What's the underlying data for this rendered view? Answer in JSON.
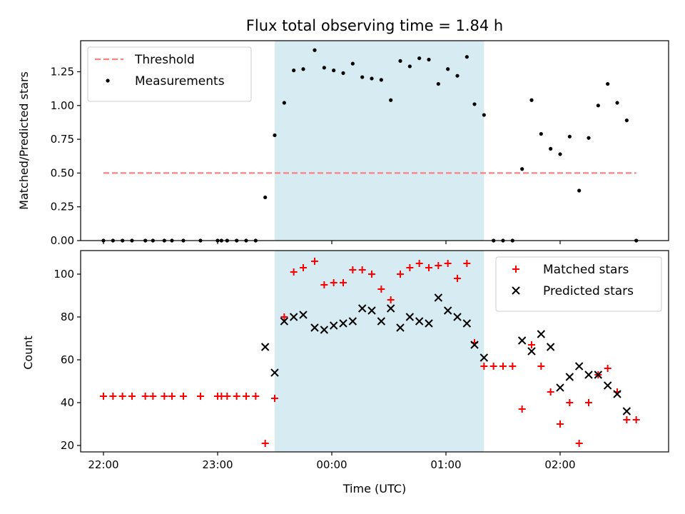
{
  "figure": {
    "title": "Flux total observing time = 1.84 h",
    "xlabel": "Time (UTC)",
    "highlight_color": "#add8e6",
    "highlight_span": [
      "23:30",
      "01:20"
    ]
  },
  "chart_data": [
    {
      "type": "scatter",
      "ylabel": "Matched/Predicted stars",
      "xlim": [
        "21:48",
        "02:57"
      ],
      "ylim": [
        0,
        1.48
      ],
      "yticks": [
        0.0,
        0.25,
        0.5,
        0.75,
        1.0,
        1.25
      ],
      "ytick_labels": [
        "0.00",
        "0.25",
        "0.50",
        "0.75",
        "1.00",
        "1.25"
      ],
      "xticks": [
        "22:00",
        "23:00",
        "00:00",
        "01:00",
        "02:00"
      ],
      "legend_position": "upper-left",
      "threshold": {
        "name": "Threshold",
        "value": 0.5,
        "x_range": [
          "22:00",
          "02:40"
        ],
        "color": "#ff7f7f",
        "style": "dashed"
      },
      "series": [
        {
          "name": "Measurements",
          "marker": "dot",
          "color": "#000000",
          "points": [
            [
              "22:00",
              0
            ],
            [
              "22:05",
              0
            ],
            [
              "22:10",
              0
            ],
            [
              "22:15",
              0
            ],
            [
              "22:22",
              0
            ],
            [
              "22:26",
              0
            ],
            [
              "22:32",
              0
            ],
            [
              "22:36",
              0
            ],
            [
              "22:42",
              0
            ],
            [
              "22:51",
              0
            ],
            [
              "23:00",
              0
            ],
            [
              "23:02",
              0
            ],
            [
              "23:05",
              0
            ],
            [
              "23:10",
              0
            ],
            [
              "23:15",
              0
            ],
            [
              "23:20",
              0
            ],
            [
              "23:25",
              0.32
            ],
            [
              "23:30",
              0.78
            ],
            [
              "23:35",
              1.02
            ],
            [
              "23:40",
              1.26
            ],
            [
              "23:45",
              1.27
            ],
            [
              "23:51",
              1.41
            ],
            [
              "23:56",
              1.28
            ],
            [
              "00:01",
              1.26
            ],
            [
              "00:06",
              1.24
            ],
            [
              "00:11",
              1.31
            ],
            [
              "00:16",
              1.21
            ],
            [
              "00:21",
              1.2
            ],
            [
              "00:26",
              1.19
            ],
            [
              "00:31",
              1.04
            ],
            [
              "00:36",
              1.33
            ],
            [
              "00:41",
              1.29
            ],
            [
              "00:46",
              1.35
            ],
            [
              "00:51",
              1.34
            ],
            [
              "00:56",
              1.16
            ],
            [
              "01:01",
              1.27
            ],
            [
              "01:06",
              1.22
            ],
            [
              "01:11",
              1.36
            ],
            [
              "01:15",
              1.01
            ],
            [
              "01:20",
              0.93
            ],
            [
              "01:25",
              0
            ],
            [
              "01:30",
              0
            ],
            [
              "01:35",
              0
            ],
            [
              "01:40",
              0.53
            ],
            [
              "01:45",
              1.04
            ],
            [
              "01:50",
              0.79
            ],
            [
              "01:55",
              0.68
            ],
            [
              "02:00",
              0.64
            ],
            [
              "02:05",
              0.77
            ],
            [
              "02:10",
              0.37
            ],
            [
              "02:15",
              0.76
            ],
            [
              "02:20",
              1.0
            ],
            [
              "02:25",
              1.16
            ],
            [
              "02:30",
              1.02
            ],
            [
              "02:35",
              0.89
            ],
            [
              "02:40",
              0
            ]
          ]
        }
      ]
    },
    {
      "type": "scatter",
      "ylabel": "Count",
      "xlim": [
        "21:48",
        "02:57"
      ],
      "ylim": [
        17,
        111
      ],
      "yticks": [
        20,
        40,
        60,
        80,
        100
      ],
      "ytick_labels": [
        "20",
        "40",
        "60",
        "80",
        "100"
      ],
      "xticks": [
        "22:00",
        "23:00",
        "00:00",
        "01:00",
        "02:00"
      ],
      "xtick_labels": [
        "22:00",
        "23:00",
        "00:00",
        "01:00",
        "02:00"
      ],
      "legend_position": "upper-right",
      "series": [
        {
          "name": "Matched stars",
          "marker": "plus",
          "color": "#ff0000",
          "points": [
            [
              "22:00",
              43
            ],
            [
              "22:05",
              43
            ],
            [
              "22:10",
              43
            ],
            [
              "22:15",
              43
            ],
            [
              "22:22",
              43
            ],
            [
              "22:26",
              43
            ],
            [
              "22:32",
              43
            ],
            [
              "22:36",
              43
            ],
            [
              "22:42",
              43
            ],
            [
              "22:51",
              43
            ],
            [
              "23:00",
              43
            ],
            [
              "23:02",
              43
            ],
            [
              "23:05",
              43
            ],
            [
              "23:10",
              43
            ],
            [
              "23:15",
              43
            ],
            [
              "23:20",
              43
            ],
            [
              "23:25",
              21
            ],
            [
              "23:30",
              42
            ],
            [
              "23:35",
              80
            ],
            [
              "23:40",
              101
            ],
            [
              "23:45",
              103
            ],
            [
              "23:51",
              106
            ],
            [
              "23:56",
              95
            ],
            [
              "00:01",
              96
            ],
            [
              "00:06",
              96
            ],
            [
              "00:11",
              102
            ],
            [
              "00:16",
              102
            ],
            [
              "00:21",
              100
            ],
            [
              "00:26",
              93
            ],
            [
              "00:31",
              88
            ],
            [
              "00:36",
              100
            ],
            [
              "00:41",
              103
            ],
            [
              "00:46",
              105
            ],
            [
              "00:51",
              103
            ],
            [
              "00:56",
              104
            ],
            [
              "01:01",
              105
            ],
            [
              "01:06",
              98
            ],
            [
              "01:11",
              105
            ],
            [
              "01:15",
              68
            ],
            [
              "01:20",
              57
            ],
            [
              "01:25",
              57
            ],
            [
              "01:30",
              57
            ],
            [
              "01:35",
              57
            ],
            [
              "01:40",
              37
            ],
            [
              "01:45",
              67
            ],
            [
              "01:50",
              57
            ],
            [
              "01:55",
              45
            ],
            [
              "02:00",
              30
            ],
            [
              "02:05",
              40
            ],
            [
              "02:10",
              21
            ],
            [
              "02:15",
              40
            ],
            [
              "02:20",
              53
            ],
            [
              "02:25",
              56
            ],
            [
              "02:30",
              45
            ],
            [
              "02:35",
              32
            ],
            [
              "02:40",
              32
            ]
          ]
        },
        {
          "name": "Predicted stars",
          "marker": "x",
          "color": "#000000",
          "points": [
            [
              "23:25",
              66
            ],
            [
              "23:30",
              54
            ],
            [
              "23:35",
              78
            ],
            [
              "23:40",
              80
            ],
            [
              "23:45",
              81
            ],
            [
              "23:51",
              75
            ],
            [
              "23:56",
              74
            ],
            [
              "00:01",
              76
            ],
            [
              "00:06",
              77
            ],
            [
              "00:11",
              78
            ],
            [
              "00:16",
              84
            ],
            [
              "00:21",
              83
            ],
            [
              "00:26",
              78
            ],
            [
              "00:31",
              84
            ],
            [
              "00:36",
              75
            ],
            [
              "00:41",
              80
            ],
            [
              "00:46",
              78
            ],
            [
              "00:51",
              77
            ],
            [
              "00:56",
              89
            ],
            [
              "01:01",
              83
            ],
            [
              "01:06",
              80
            ],
            [
              "01:11",
              77
            ],
            [
              "01:15",
              67
            ],
            [
              "01:20",
              61
            ],
            [
              "01:40",
              69
            ],
            [
              "01:45",
              64
            ],
            [
              "01:50",
              72
            ],
            [
              "01:55",
              66
            ],
            [
              "02:00",
              47
            ],
            [
              "02:05",
              52
            ],
            [
              "02:10",
              57
            ],
            [
              "02:15",
              53
            ],
            [
              "02:20",
              53
            ],
            [
              "02:25",
              48
            ],
            [
              "02:30",
              44
            ],
            [
              "02:35",
              36
            ]
          ]
        }
      ]
    }
  ]
}
